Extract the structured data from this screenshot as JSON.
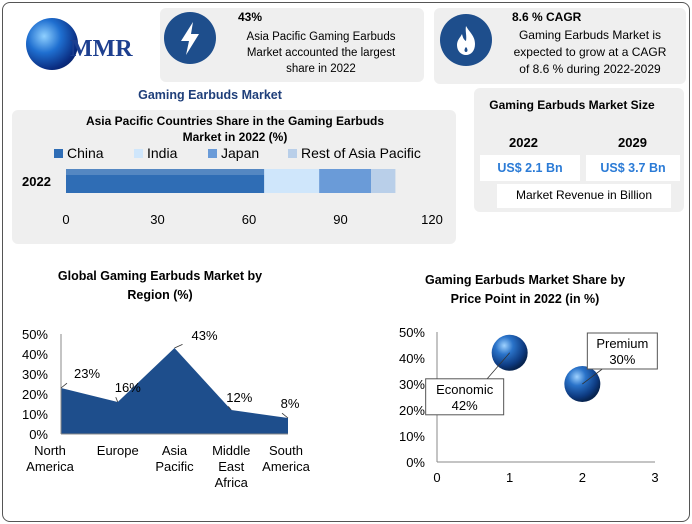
{
  "brand": {
    "logo_text": "MMR"
  },
  "stat_left": {
    "value": "43%",
    "text_lines": [
      "Asia Pacific Gaming Earbuds",
      "Market accounted the largest",
      "share in 2022"
    ],
    "icon": "lightning-icon"
  },
  "stat_right": {
    "value": "8.6 % CAGR",
    "text_lines": [
      "Gaming Earbuds Market is",
      "expected to grow at a CAGR",
      "of 8.6 % during 2022-2029"
    ],
    "icon": "flame-icon"
  },
  "section_title": "Gaming Earbuds Market",
  "market_size": {
    "title": "Gaming Earbuds Market Size",
    "year_a": "2022",
    "value_a": "US$ 2.1 Bn",
    "year_b": "2029",
    "value_b": "US$ 3.7 Bn",
    "note": "Market Revenue in Billion"
  },
  "colors": {
    "accent": "#1e4e8c",
    "value_blue": "#2b7bd6",
    "china": "#2f6db5",
    "india": "#cfe6fb",
    "japan": "#6a9bd8",
    "rest": "#b9cfe9"
  },
  "chart_data": [
    {
      "type": "bar",
      "orientation": "horizontal",
      "stacked": true,
      "title_lines": [
        "Asia Pacific Countries Share in the Gaming Earbuds",
        "Market in 2022 (%)"
      ],
      "categories": [
        "2022"
      ],
      "series": [
        {
          "name": "China",
          "values": [
            65
          ]
        },
        {
          "name": "India",
          "values": [
            18
          ]
        },
        {
          "name": "Japan",
          "values": [
            17
          ]
        },
        {
          "name": "Rest of Asia Pacific",
          "values": [
            8
          ]
        }
      ],
      "xlim": [
        0,
        120
      ],
      "xticks": [
        "0",
        "30",
        "60",
        "90",
        "120"
      ],
      "legend": "top"
    },
    {
      "type": "area",
      "title_lines": [
        "Global Gaming Earbuds Market by",
        "Region (%)"
      ],
      "categories": [
        [
          "North",
          "America"
        ],
        [
          "Europe"
        ],
        [
          "Asia",
          "Pacific"
        ],
        [
          "Middle",
          "East",
          "Africa"
        ],
        [
          "South",
          "America"
        ]
      ],
      "values": [
        23,
        16,
        43,
        12,
        8
      ],
      "data_labels": [
        "23%",
        "16%",
        "43%",
        "12%",
        "8%"
      ],
      "ylim": [
        0,
        50
      ],
      "yticks": [
        "0%",
        "10%",
        "20%",
        "30%",
        "40%",
        "50%"
      ]
    },
    {
      "type": "scatter",
      "title_lines": [
        "Gaming Earbuds Market Share by",
        "Price Point in 2022 (in %)"
      ],
      "points": [
        {
          "label": "Economic",
          "value_label": "42%",
          "x": 1,
          "y": 42
        },
        {
          "label": "Premium",
          "value_label": "30%",
          "x": 2,
          "y": 30
        }
      ],
      "xlim": [
        0,
        3
      ],
      "xticks": [
        "0",
        "1",
        "2",
        "3"
      ],
      "ylim": [
        0,
        50
      ],
      "yticks": [
        "0%",
        "10%",
        "20%",
        "30%",
        "40%",
        "50%"
      ]
    }
  ]
}
